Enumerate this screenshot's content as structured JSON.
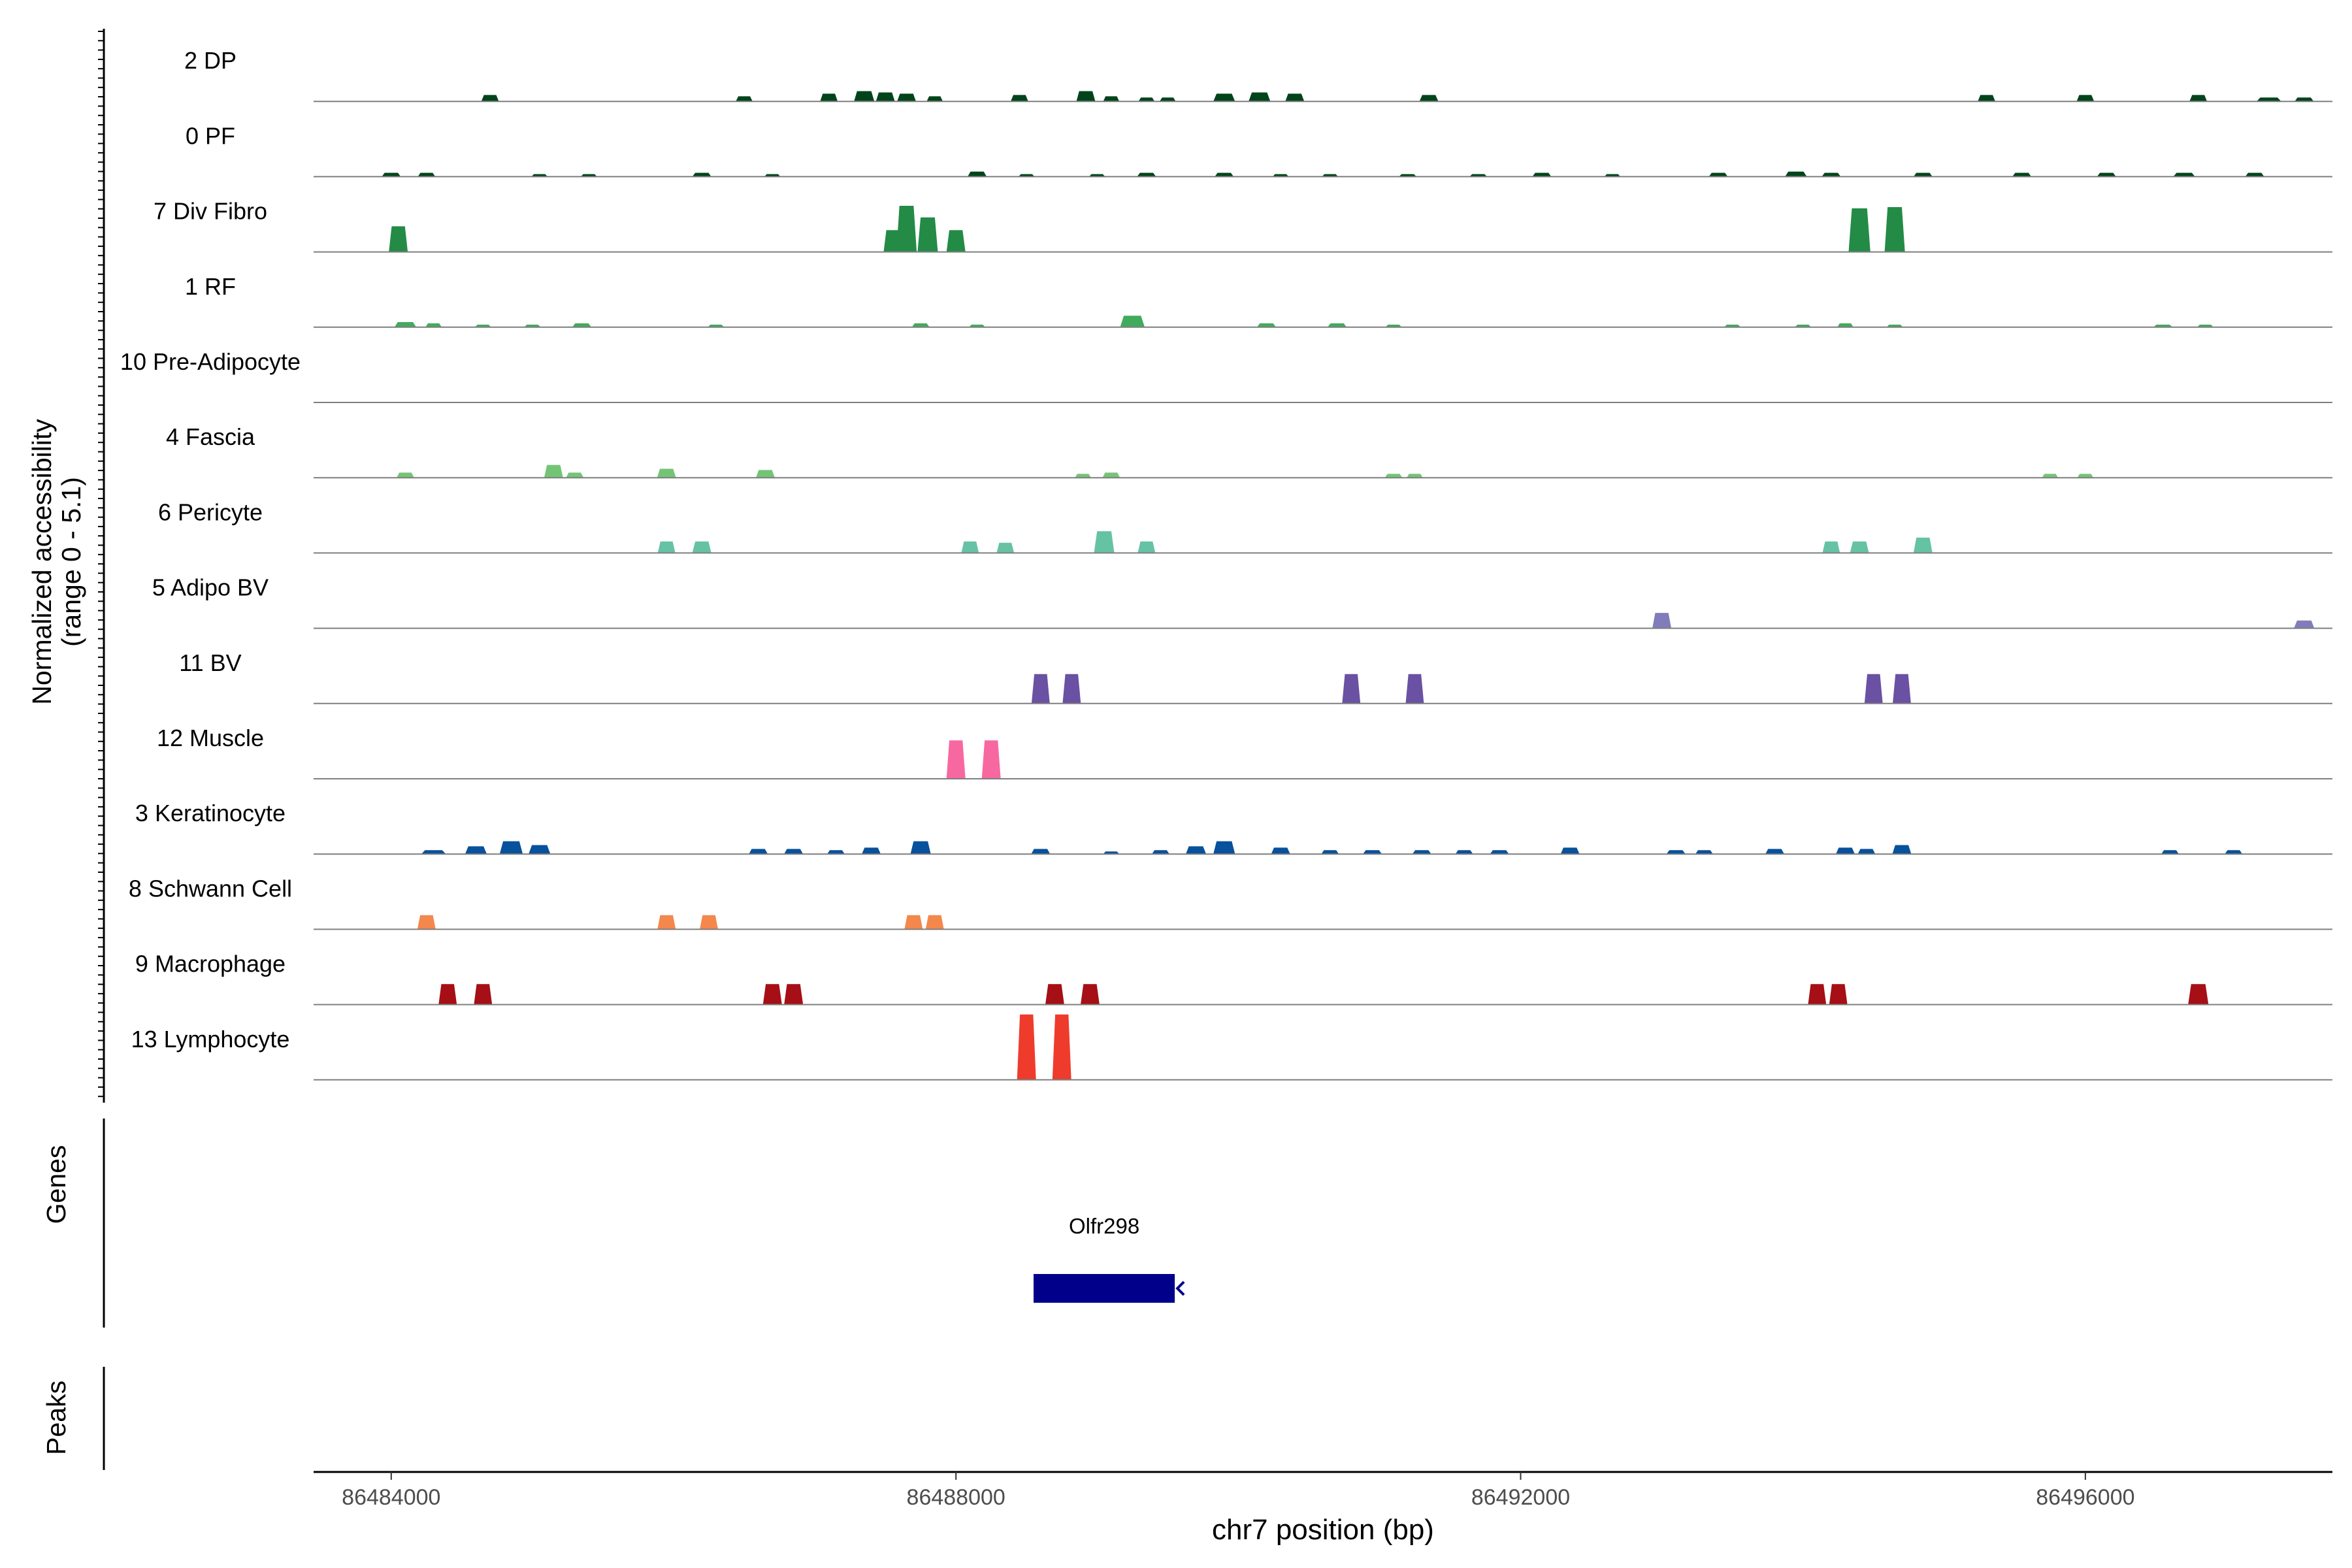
{
  "chart_data": {
    "type": "area",
    "chromosome": "chr7",
    "xlim": [
      86483450,
      86497750
    ],
    "ylim": [
      0,
      5.1
    ],
    "ylabel_lines": [
      "Normalized accessibility",
      "(range 0 - 5.1)"
    ],
    "xlabel": "chr7 position (bp)",
    "x_ticks": [
      86484000,
      86488000,
      86492000,
      86496000
    ],
    "x_tick_labels": [
      "86484000",
      "86488000",
      "86492000",
      "86496000"
    ],
    "grid": false,
    "legend": "none",
    "tracks": [
      {
        "name": "2 DP",
        "color": "#00441b",
        "peaks": [
          [
            86484700,
            50,
            0.5
          ],
          [
            86486500,
            45,
            0.4
          ],
          [
            86487100,
            50,
            0.6
          ],
          [
            86487350,
            70,
            0.8
          ],
          [
            86487500,
            60,
            0.7
          ],
          [
            86487650,
            60,
            0.6
          ],
          [
            86487850,
            40,
            0.4
          ],
          [
            86488450,
            50,
            0.5
          ],
          [
            86488920,
            60,
            0.8
          ],
          [
            86489100,
            40,
            0.4
          ],
          [
            86489350,
            40,
            0.3
          ],
          [
            86489500,
            40,
            0.3
          ],
          [
            86489900,
            80,
            0.6
          ],
          [
            86490150,
            80,
            0.7
          ],
          [
            86490400,
            60,
            0.6
          ],
          [
            86491350,
            60,
            0.5
          ],
          [
            86495300,
            50,
            0.5
          ],
          [
            86496000,
            50,
            0.5
          ],
          [
            86496800,
            50,
            0.5
          ],
          [
            86497300,
            100,
            0.3
          ],
          [
            86497550,
            60,
            0.3
          ]
        ]
      },
      {
        "name": "0 PF",
        "color": "#00441b",
        "peaks": [
          [
            86484000,
            60,
            0.3
          ],
          [
            86484250,
            50,
            0.3
          ],
          [
            86485050,
            40,
            0.2
          ],
          [
            86485400,
            40,
            0.2
          ],
          [
            86486200,
            60,
            0.3
          ],
          [
            86486700,
            40,
            0.2
          ],
          [
            86488150,
            60,
            0.4
          ],
          [
            86488500,
            40,
            0.2
          ],
          [
            86489000,
            40,
            0.2
          ],
          [
            86489350,
            60,
            0.3
          ],
          [
            86489900,
            60,
            0.3
          ],
          [
            86490300,
            40,
            0.2
          ],
          [
            86490650,
            40,
            0.2
          ],
          [
            86491200,
            50,
            0.2
          ],
          [
            86491700,
            50,
            0.2
          ],
          [
            86492150,
            60,
            0.3
          ],
          [
            86492650,
            40,
            0.2
          ],
          [
            86493400,
            60,
            0.3
          ],
          [
            86493950,
            80,
            0.4
          ],
          [
            86494200,
            60,
            0.3
          ],
          [
            86494850,
            60,
            0.3
          ],
          [
            86495550,
            60,
            0.3
          ],
          [
            86496150,
            60,
            0.3
          ],
          [
            86496700,
            80,
            0.3
          ],
          [
            86497200,
            60,
            0.3
          ]
        ]
      },
      {
        "name": "7 Div Fibro",
        "color": "#238b45",
        "peaks": [
          [
            86484050,
            60,
            2.0
          ],
          [
            86487550,
            50,
            1.7
          ],
          [
            86487650,
            70,
            3.6
          ],
          [
            86487800,
            70,
            2.7
          ],
          [
            86488000,
            60,
            1.7
          ],
          [
            86494400,
            80,
            3.4
          ],
          [
            86494650,
            70,
            3.5
          ]
        ]
      },
      {
        "name": "1 RF",
        "color": "#41ab5d",
        "peaks": [
          [
            86484100,
            80,
            0.4
          ],
          [
            86484300,
            40,
            0.3
          ],
          [
            86484650,
            40,
            0.2
          ],
          [
            86485000,
            40,
            0.2
          ],
          [
            86485350,
            60,
            0.3
          ],
          [
            86486300,
            40,
            0.2
          ],
          [
            86487750,
            50,
            0.3
          ],
          [
            86488150,
            40,
            0.2
          ],
          [
            86489250,
            100,
            0.9
          ],
          [
            86490200,
            60,
            0.3
          ],
          [
            86490700,
            60,
            0.3
          ],
          [
            86491100,
            40,
            0.2
          ],
          [
            86493500,
            40,
            0.2
          ],
          [
            86494000,
            40,
            0.2
          ],
          [
            86494300,
            40,
            0.3
          ],
          [
            86494650,
            40,
            0.2
          ],
          [
            86496550,
            60,
            0.2
          ],
          [
            86496850,
            40,
            0.2
          ]
        ]
      },
      {
        "name": "10 Pre-Adipocyte",
        "color": "#74c476",
        "peaks": []
      },
      {
        "name": "4 Fascia",
        "color": "#74c476",
        "peaks": [
          [
            86484100,
            50,
            0.4
          ],
          [
            86485150,
            60,
            1.0
          ],
          [
            86485300,
            50,
            0.4
          ],
          [
            86485950,
            60,
            0.7
          ],
          [
            86486650,
            60,
            0.6
          ],
          [
            86488900,
            40,
            0.3
          ],
          [
            86489100,
            50,
            0.4
          ],
          [
            86491100,
            50,
            0.3
          ],
          [
            86491250,
            40,
            0.3
          ],
          [
            86495750,
            40,
            0.3
          ],
          [
            86496000,
            40,
            0.3
          ]
        ]
      },
      {
        "name": "6 Pericyte",
        "color": "#66c2a4",
        "peaks": [
          [
            86485950,
            50,
            0.9
          ],
          [
            86486200,
            60,
            0.9
          ],
          [
            86488100,
            50,
            0.9
          ],
          [
            86488350,
            50,
            0.8
          ],
          [
            86489050,
            70,
            1.7
          ],
          [
            86489350,
            50,
            0.9
          ],
          [
            86494200,
            50,
            0.9
          ],
          [
            86494400,
            60,
            0.9
          ],
          [
            86494850,
            60,
            1.2
          ]
        ]
      },
      {
        "name": "5 Adipo BV",
        "color": "#807dba",
        "peaks": [
          [
            86493000,
            60,
            1.2
          ],
          [
            86497550,
            70,
            0.6
          ]
        ]
      },
      {
        "name": "11 BV",
        "color": "#6a51a3",
        "peaks": [
          [
            86488600,
            55,
            2.3
          ],
          [
            86488820,
            55,
            2.3
          ],
          [
            86490800,
            55,
            2.3
          ],
          [
            86491250,
            55,
            2.3
          ],
          [
            86494500,
            55,
            2.3
          ],
          [
            86494700,
            55,
            2.3
          ]
        ]
      },
      {
        "name": "12 Muscle",
        "color": "#f768a1",
        "peaks": [
          [
            86488000,
            60,
            3.0
          ],
          [
            86488250,
            60,
            3.0
          ]
        ]
      },
      {
        "name": "3 Keratinocyte",
        "color": "#08519c",
        "peaks": [
          [
            86484300,
            100,
            0.3
          ],
          [
            86484600,
            80,
            0.6
          ],
          [
            86484850,
            90,
            1.0
          ],
          [
            86485050,
            80,
            0.7
          ],
          [
            86486600,
            60,
            0.4
          ],
          [
            86486850,
            60,
            0.4
          ],
          [
            86487150,
            50,
            0.3
          ],
          [
            86487400,
            60,
            0.5
          ],
          [
            86487750,
            70,
            1.0
          ],
          [
            86488600,
            60,
            0.4
          ],
          [
            86489100,
            40,
            0.2
          ],
          [
            86489450,
            50,
            0.3
          ],
          [
            86489700,
            70,
            0.6
          ],
          [
            86489900,
            80,
            1.0
          ],
          [
            86490300,
            60,
            0.5
          ],
          [
            86490650,
            50,
            0.3
          ],
          [
            86490950,
            60,
            0.3
          ],
          [
            86491300,
            60,
            0.3
          ],
          [
            86491600,
            50,
            0.3
          ],
          [
            86491850,
            60,
            0.3
          ],
          [
            86492350,
            60,
            0.5
          ],
          [
            86493100,
            60,
            0.3
          ],
          [
            86493300,
            50,
            0.3
          ],
          [
            86493800,
            60,
            0.4
          ],
          [
            86494300,
            60,
            0.5
          ],
          [
            86494450,
            50,
            0.4
          ],
          [
            86494700,
            60,
            0.7
          ],
          [
            86496600,
            50,
            0.3
          ],
          [
            86497050,
            50,
            0.3
          ]
        ]
      },
      {
        "name": "8 Schwann Cell",
        "color": "#f4874b",
        "peaks": [
          [
            86484250,
            55,
            1.1
          ],
          [
            86485950,
            55,
            1.1
          ],
          [
            86486250,
            55,
            1.1
          ],
          [
            86487700,
            55,
            1.1
          ],
          [
            86487850,
            55,
            1.1
          ]
        ]
      },
      {
        "name": "9 Macrophage",
        "color": "#a50f15",
        "peaks": [
          [
            86484400,
            55,
            1.6
          ],
          [
            86484650,
            55,
            1.6
          ],
          [
            86486700,
            60,
            1.6
          ],
          [
            86486850,
            60,
            1.6
          ],
          [
            86488700,
            60,
            1.6
          ],
          [
            86488950,
            60,
            1.6
          ],
          [
            86494100,
            55,
            1.6
          ],
          [
            86494250,
            55,
            1.6
          ],
          [
            86496800,
            70,
            1.6
          ]
        ]
      },
      {
        "name": "13 Lymphocyte",
        "color": "#ef3b2c",
        "peaks": [
          [
            86488500,
            60,
            5.1
          ],
          [
            86488750,
            60,
            5.1
          ]
        ]
      }
    ],
    "genes": {
      "panel_label": "Genes",
      "items": [
        {
          "name": "Olfr298",
          "start": 86488550,
          "end": 86489550,
          "strand": "-",
          "color": "#00008b"
        }
      ]
    },
    "peaks_panel": {
      "panel_label": "Peaks",
      "items": []
    }
  }
}
